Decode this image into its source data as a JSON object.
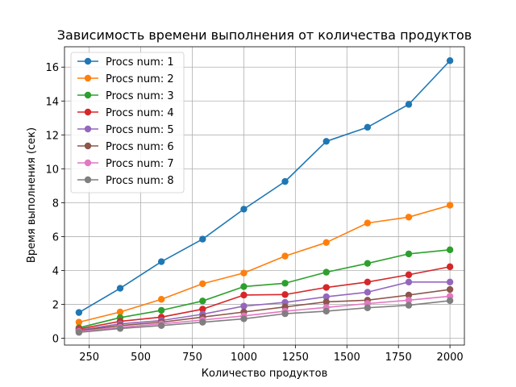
{
  "chart_data": {
    "type": "line",
    "title": "Зависимость времени выполнения от количества продуктов",
    "xlabel": "Количество продуктов",
    "ylabel": "Время выполнения (сек)",
    "xlim": [
      130,
      2070
    ],
    "ylim": [
      -0.4,
      17.2
    ],
    "xticks": [
      250,
      500,
      750,
      1000,
      1250,
      1500,
      1750,
      2000
    ],
    "yticks": [
      0,
      2,
      4,
      6,
      8,
      10,
      12,
      14,
      16
    ],
    "grid": true,
    "legend_position": "upper-left",
    "x": [
      200,
      400,
      600,
      800,
      1000,
      1200,
      1400,
      1600,
      1800,
      2000
    ],
    "series": [
      {
        "name": "Procs num: 1",
        "color": "#1f77b4",
        "values": [
          1.52,
          2.95,
          4.52,
          5.85,
          7.62,
          9.25,
          11.62,
          12.45,
          13.8,
          16.38
        ]
      },
      {
        "name": "Procs num: 2",
        "color": "#ff7f0e",
        "values": [
          0.95,
          1.55,
          2.3,
          3.22,
          3.85,
          4.85,
          5.65,
          6.8,
          7.15,
          7.85
        ]
      },
      {
        "name": "Procs num: 3",
        "color": "#2ca02c",
        "values": [
          0.62,
          1.22,
          1.65,
          2.2,
          3.05,
          3.25,
          3.9,
          4.42,
          4.98,
          5.22
        ]
      },
      {
        "name": "Procs num: 4",
        "color": "#d62728",
        "values": [
          0.55,
          1.0,
          1.25,
          1.72,
          2.55,
          2.58,
          3.0,
          3.32,
          3.75,
          4.22
        ]
      },
      {
        "name": "Procs num: 5",
        "color": "#9467bd",
        "values": [
          0.48,
          0.85,
          1.05,
          1.42,
          1.9,
          2.12,
          2.45,
          2.72,
          3.32,
          3.32
        ]
      },
      {
        "name": "Procs num: 6",
        "color": "#8c564b",
        "values": [
          0.45,
          0.75,
          0.95,
          1.25,
          1.55,
          1.85,
          2.15,
          2.25,
          2.55,
          2.88
        ]
      },
      {
        "name": "Procs num: 7",
        "color": "#e377c2",
        "values": [
          0.4,
          0.65,
          0.85,
          1.08,
          1.32,
          1.6,
          1.82,
          2.05,
          2.25,
          2.48
        ]
      },
      {
        "name": "Procs num: 8",
        "color": "#7f7f7f",
        "values": [
          0.35,
          0.58,
          0.75,
          0.95,
          1.15,
          1.45,
          1.6,
          1.8,
          1.95,
          2.22
        ]
      }
    ]
  }
}
